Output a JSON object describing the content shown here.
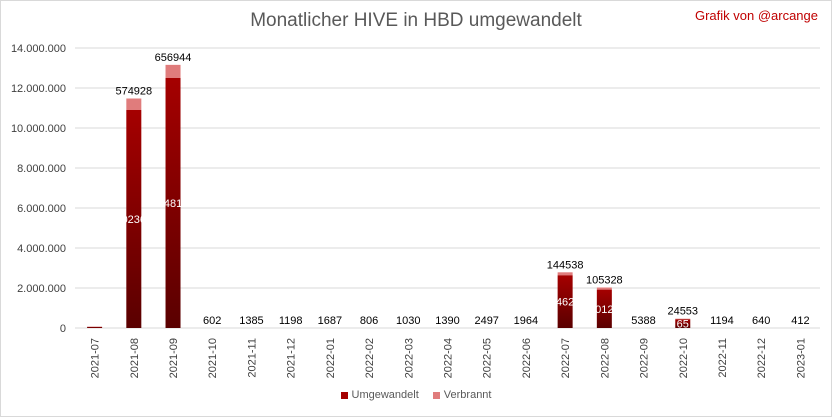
{
  "header": {
    "title": "Monatlicher HIVE in HBD umgewandelt",
    "credit": "Grafik von @arcange"
  },
  "colors": {
    "converted": "#a50000",
    "burned": "#e07c7c",
    "grid": "#d9d9d9",
    "text": "#595959"
  },
  "chart_data": {
    "type": "bar",
    "stacked": true,
    "title": "Monatlicher HIVE in HBD umgewandelt",
    "ylim": [
      0,
      14000000
    ],
    "y_ticks": [
      "0",
      "2.000.000",
      "4.000.000",
      "6.000.000",
      "8.000.000",
      "10.000.000",
      "12.000.000",
      "14.000.000"
    ],
    "grid": true,
    "legend_position": "bottom",
    "categories": [
      "2021-07",
      "2021-08",
      "2021-09",
      "2021-10",
      "2021-11",
      "2021-12",
      "2022-01",
      "2022-02",
      "2022-03",
      "2022-04",
      "2022-05",
      "2022-06",
      "2022-07",
      "2022-08",
      "2022-09",
      "2022-10",
      "2022-11",
      "2022-12",
      "2023-01"
    ],
    "series": [
      {
        "name": "Umgewandelt",
        "values": [
          60000,
          10900000,
          12500000,
          0,
          0,
          0,
          0,
          0,
          0,
          0,
          0,
          0,
          2640000,
          1920000,
          0,
          440000,
          0,
          0,
          0
        ]
      },
      {
        "name": "Verbrannt",
        "values": [
          3000,
          574928,
          656944,
          602,
          1385,
          1198,
          1687,
          806,
          1030,
          1390,
          2497,
          1964,
          144538,
          105328,
          5388,
          24553,
          1194,
          640,
          412
        ]
      }
    ],
    "top_labels": [
      "",
      "574928",
      "656944",
      "602",
      "1385",
      "1198",
      "1687",
      "806",
      "1030",
      "1390",
      "2497",
      "1964",
      "144538",
      "105328",
      "5388",
      "24553",
      "1194",
      "640",
      "412"
    ],
    "inner_labels": [
      "",
      "0236",
      "481",
      "",
      "",
      "",
      "",
      "",
      "",
      "",
      "",
      "",
      "462",
      "012",
      "",
      "65",
      "",
      "",
      ""
    ]
  },
  "legend": {
    "converted_label": "Umgewandelt",
    "burned_label": "Verbrannt"
  }
}
